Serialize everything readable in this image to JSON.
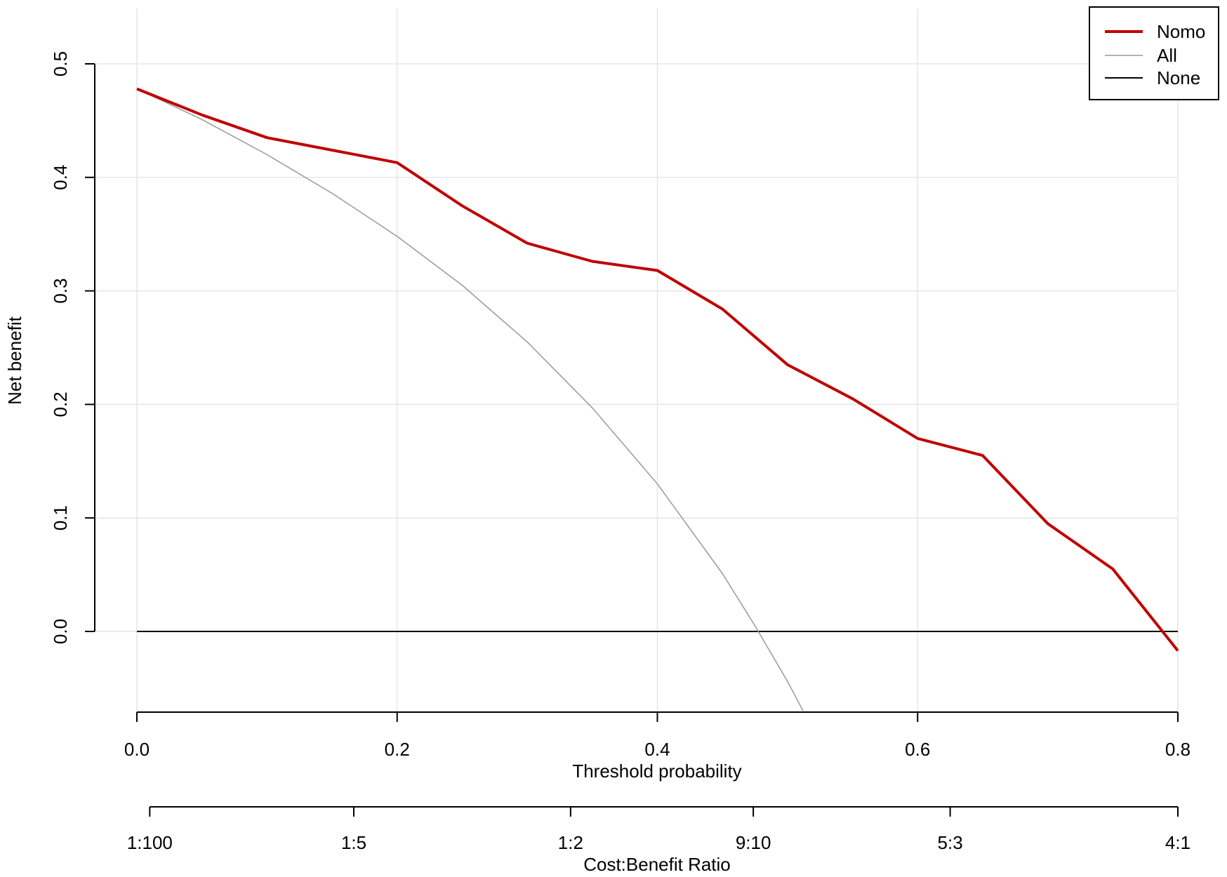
{
  "chart_data": {
    "type": "line",
    "xlabel": "Threshold probability",
    "ylabel": "Net benefit",
    "xlim": [
      0.0,
      0.8
    ],
    "ylim": [
      -0.07,
      0.5
    ],
    "grid": true,
    "legend_position": "top-right",
    "x_ticks": [
      "0.0",
      "0.2",
      "0.4",
      "0.6",
      "0.8"
    ],
    "x_tick_values": [
      0.0,
      0.2,
      0.4,
      0.6,
      0.8
    ],
    "y_ticks": [
      "0.0",
      "0.1",
      "0.2",
      "0.3",
      "0.4",
      "0.5"
    ],
    "y_tick_values": [
      0.0,
      0.1,
      0.2,
      0.3,
      0.4,
      0.5
    ],
    "secondary_x_axis": {
      "label": "Cost:Benefit Ratio",
      "ticks": [
        "1:100",
        "1:5",
        "1:2",
        "9:10",
        "5:3",
        "4:1"
      ],
      "tick_thresholds": [
        0.0099,
        0.1667,
        0.3333,
        0.4737,
        0.625,
        0.8
      ]
    },
    "series": [
      {
        "name": "Nomo",
        "color": "#c00000",
        "x": [
          0.0,
          0.05,
          0.1,
          0.15,
          0.2,
          0.25,
          0.3,
          0.35,
          0.4,
          0.45,
          0.5,
          0.55,
          0.6,
          0.65,
          0.7,
          0.75,
          0.8
        ],
        "y": [
          0.478,
          0.455,
          0.435,
          0.424,
          0.413,
          0.375,
          0.342,
          0.326,
          0.318,
          0.284,
          0.235,
          0.205,
          0.17,
          0.155,
          0.095,
          0.055,
          -0.017
        ]
      },
      {
        "name": "All",
        "color": "#999999",
        "x": [
          0.0,
          0.05,
          0.1,
          0.15,
          0.2,
          0.25,
          0.3,
          0.35,
          0.4,
          0.45,
          0.475,
          0.5,
          0.512
        ],
        "y": [
          0.478,
          0.451,
          0.42,
          0.386,
          0.348,
          0.305,
          0.255,
          0.197,
          0.13,
          0.051,
          0.005,
          -0.044,
          -0.07
        ]
      },
      {
        "name": "None",
        "color": "#000000",
        "x": [
          0.0,
          0.8
        ],
        "y": [
          0.0,
          0.0
        ]
      }
    ]
  }
}
